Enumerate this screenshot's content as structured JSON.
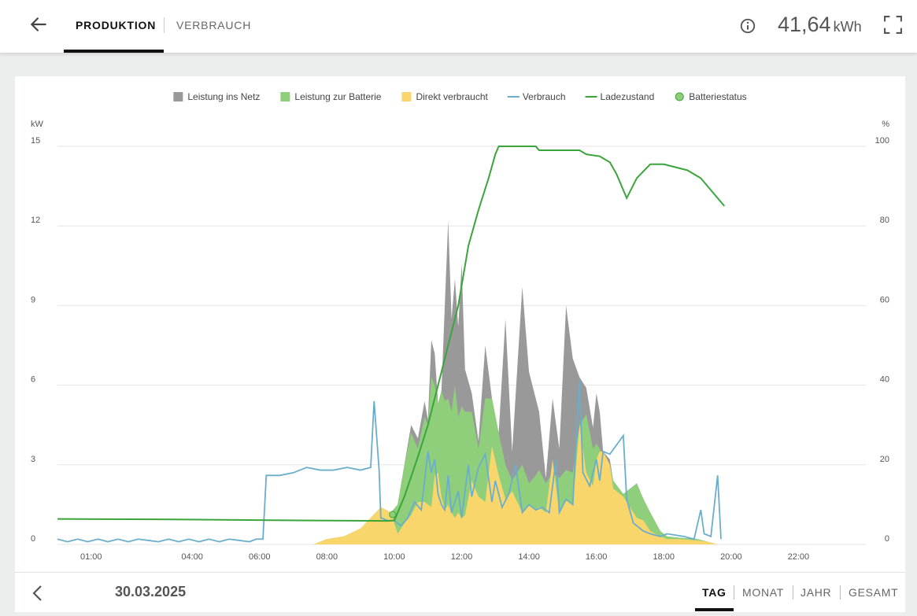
{
  "header": {
    "tabs": [
      {
        "label": "PRODUKTION",
        "active": true
      },
      {
        "label": "VERBRAUCH",
        "active": false
      }
    ],
    "total_value": "41,64",
    "total_unit": "kWh",
    "icons": {
      "back": "arrow-left-icon",
      "info": "info-icon",
      "fullscreen": "fullscreen-icon"
    }
  },
  "footer": {
    "date": "30.03.2025",
    "periods": [
      {
        "label": "TAG",
        "active": true
      },
      {
        "label": "MONAT",
        "active": false
      },
      {
        "label": "JAHR",
        "active": false
      },
      {
        "label": "GESAMT",
        "active": false
      }
    ],
    "icons": {
      "prev": "chevron-left-icon"
    }
  },
  "chart_data": {
    "type": "area",
    "left_axis_unit": "kW",
    "right_axis_unit": "%",
    "left_ticks": [
      0,
      3,
      6,
      9,
      12,
      15
    ],
    "right_ticks": [
      0,
      20,
      40,
      60,
      80,
      100
    ],
    "x_ticks": [
      "01:00",
      "04:00",
      "06:00",
      "08:00",
      "10:00",
      "12:00",
      "14:00",
      "16:00",
      "18:00",
      "20:00",
      "22:00"
    ],
    "x_range_hours": [
      0.0,
      24.0
    ],
    "ylim_left": [
      0,
      15
    ],
    "ylim_right": [
      0,
      100
    ],
    "grid": true,
    "legend_position": "top-center",
    "colors": {
      "netz": "#999999",
      "batterie": "#8fcf7c",
      "direkt": "#f9d66b",
      "verbrauch": "#6aaecb",
      "ladezustand": "#3aa53a",
      "batteriestatus": "#8fcf7c"
    },
    "legend": [
      {
        "name": "Leistung ins Netz",
        "type": "area",
        "key": "netz"
      },
      {
        "name": "Leistung zur Batterie",
        "type": "area",
        "key": "batterie"
      },
      {
        "name": "Direkt verbraucht",
        "type": "area",
        "key": "direkt"
      },
      {
        "name": "Verbrauch",
        "type": "line",
        "key": "verbrauch"
      },
      {
        "name": "Ladezustand",
        "type": "line",
        "key": "ladezustand"
      },
      {
        "name": "Batteriestatus",
        "type": "marker",
        "key": "batteriestatus"
      }
    ],
    "production_kw": [
      [
        7.6,
        0
      ],
      [
        8,
        0.2
      ],
      [
        8.5,
        0.3
      ],
      [
        9,
        0.6
      ],
      [
        9.3,
        1.0
      ],
      [
        9.6,
        1.4
      ],
      [
        9.9,
        1.2
      ],
      [
        10.1,
        1.5
      ],
      [
        10.3,
        3.0
      ],
      [
        10.5,
        4.5
      ],
      [
        10.7,
        4.0
      ],
      [
        10.9,
        5.4
      ],
      [
        11.0,
        4.7
      ],
      [
        11.1,
        7.7
      ],
      [
        11.2,
        7.2
      ],
      [
        11.3,
        5.3
      ],
      [
        11.4,
        5.8
      ],
      [
        11.5,
        9.0
      ],
      [
        11.6,
        12.2
      ],
      [
        11.7,
        8.5
      ],
      [
        11.8,
        10.0
      ],
      [
        11.9,
        8.2
      ],
      [
        12.0,
        10.6
      ],
      [
        12.1,
        6.6
      ],
      [
        12.3,
        5.7
      ],
      [
        12.5,
        3.9
      ],
      [
        12.7,
        7.5
      ],
      [
        12.9,
        5.5
      ],
      [
        13.1,
        4.2
      ],
      [
        13.3,
        8.5
      ],
      [
        13.5,
        3.5
      ],
      [
        13.8,
        9.7
      ],
      [
        14.0,
        6.5
      ],
      [
        14.2,
        5.5
      ],
      [
        14.3,
        5.0
      ],
      [
        14.5,
        2.5
      ],
      [
        14.7,
        5.5
      ],
      [
        14.9,
        3.6
      ],
      [
        15.1,
        9.0
      ],
      [
        15.3,
        7.0
      ],
      [
        15.5,
        6.3
      ],
      [
        15.7,
        5.9
      ],
      [
        15.9,
        4.4
      ],
      [
        16.0,
        5.7
      ],
      [
        16.1,
        5.0
      ],
      [
        16.2,
        3.5
      ],
      [
        16.4,
        3.2
      ],
      [
        16.5,
        2.4
      ],
      [
        16.8,
        1.9
      ],
      [
        17.0,
        2.1
      ],
      [
        17.2,
        2.3
      ],
      [
        17.4,
        1.7
      ],
      [
        17.6,
        1.2
      ],
      [
        17.9,
        0.5
      ],
      [
        18.1,
        0.3
      ],
      [
        18.5,
        0.25
      ],
      [
        19.0,
        0.2
      ],
      [
        19.3,
        0.1
      ],
      [
        19.6,
        0
      ]
    ],
    "battery_plus_direct_kw": [
      [
        7.6,
        0
      ],
      [
        8,
        0.2
      ],
      [
        8.5,
        0.3
      ],
      [
        9,
        0.6
      ],
      [
        9.3,
        1.0
      ],
      [
        9.6,
        1.4
      ],
      [
        9.9,
        1.2
      ],
      [
        10.1,
        1.5
      ],
      [
        10.3,
        3.0
      ],
      [
        10.5,
        4.2
      ],
      [
        10.7,
        3.6
      ],
      [
        10.9,
        4.8
      ],
      [
        11.0,
        4.5
      ],
      [
        11.1,
        6.3
      ],
      [
        11.2,
        6.0
      ],
      [
        11.3,
        5.3
      ],
      [
        11.4,
        5.8
      ],
      [
        11.5,
        5.4
      ],
      [
        11.6,
        5.5
      ],
      [
        11.7,
        5.0
      ],
      [
        11.8,
        6.0
      ],
      [
        11.9,
        4.8
      ],
      [
        12.0,
        5.2
      ],
      [
        12.1,
        5.0
      ],
      [
        12.3,
        5.0
      ],
      [
        12.5,
        3.6
      ],
      [
        12.7,
        5.5
      ],
      [
        12.9,
        5.5
      ],
      [
        13.1,
        4.2
      ],
      [
        13.3,
        3.0
      ],
      [
        13.5,
        2.4
      ],
      [
        13.8,
        3.0
      ],
      [
        14.0,
        2.3
      ],
      [
        14.2,
        2.6
      ],
      [
        14.3,
        2.8
      ],
      [
        14.5,
        2.3
      ],
      [
        14.7,
        2.7
      ],
      [
        14.9,
        2.5
      ],
      [
        15.1,
        2.8
      ],
      [
        15.3,
        2.7
      ],
      [
        15.5,
        4.5
      ],
      [
        15.7,
        4.9
      ],
      [
        15.9,
        3.6
      ],
      [
        16.0,
        3.8
      ],
      [
        16.1,
        3.6
      ],
      [
        16.2,
        3.2
      ],
      [
        16.4,
        3.0
      ],
      [
        16.5,
        2.4
      ],
      [
        16.8,
        1.9
      ],
      [
        17.0,
        2.1
      ],
      [
        17.2,
        2.3
      ],
      [
        17.4,
        1.7
      ],
      [
        17.6,
        1.2
      ],
      [
        17.9,
        0.5
      ],
      [
        18.1,
        0.3
      ],
      [
        18.5,
        0.25
      ],
      [
        19.0,
        0.2
      ],
      [
        19.3,
        0.1
      ],
      [
        19.6,
        0
      ]
    ],
    "direct_kw": [
      [
        7.6,
        0
      ],
      [
        8,
        0.2
      ],
      [
        8.5,
        0.3
      ],
      [
        9,
        0.6
      ],
      [
        9.3,
        1.0
      ],
      [
        9.6,
        1.4
      ],
      [
        9.9,
        1.2
      ],
      [
        10.1,
        0.4
      ],
      [
        10.3,
        0.8
      ],
      [
        10.5,
        1.1
      ],
      [
        10.7,
        1.6
      ],
      [
        10.9,
        1.6
      ],
      [
        11.0,
        1.5
      ],
      [
        11.1,
        1.4
      ],
      [
        11.2,
        2.6
      ],
      [
        11.3,
        2.7
      ],
      [
        11.4,
        1.8
      ],
      [
        11.5,
        1.3
      ],
      [
        11.6,
        1.5
      ],
      [
        11.7,
        1.2
      ],
      [
        11.8,
        1.0
      ],
      [
        11.9,
        1.2
      ],
      [
        12.0,
        1.0
      ],
      [
        12.1,
        1.1
      ],
      [
        12.3,
        2.4
      ],
      [
        12.5,
        1.8
      ],
      [
        12.7,
        1.6
      ],
      [
        12.9,
        3.7
      ],
      [
        13.1,
        2.6
      ],
      [
        13.3,
        1.7
      ],
      [
        13.5,
        2.0
      ],
      [
        13.8,
        1.2
      ],
      [
        14.0,
        1.5
      ],
      [
        14.2,
        1.3
      ],
      [
        14.3,
        1.4
      ],
      [
        14.5,
        1.2
      ],
      [
        14.7,
        3.2
      ],
      [
        14.9,
        1.2
      ],
      [
        15.1,
        1.7
      ],
      [
        15.3,
        1.5
      ],
      [
        15.5,
        4.5
      ],
      [
        15.7,
        2.7
      ],
      [
        15.9,
        2.2
      ],
      [
        16.0,
        3.2
      ],
      [
        16.1,
        3.5
      ],
      [
        16.2,
        3.5
      ],
      [
        16.4,
        3.0
      ],
      [
        16.5,
        2.1
      ],
      [
        16.8,
        1.8
      ],
      [
        17.0,
        1.4
      ],
      [
        17.2,
        1.0
      ],
      [
        17.4,
        0.9
      ],
      [
        17.6,
        0.5
      ],
      [
        17.9,
        0.3
      ],
      [
        18.1,
        0.2
      ],
      [
        18.5,
        0.2
      ],
      [
        19.0,
        0.15
      ],
      [
        19.3,
        0.1
      ],
      [
        19.6,
        0
      ]
    ],
    "verbrauch_kw": [
      [
        0.0,
        0.2
      ],
      [
        0.3,
        0.1
      ],
      [
        0.6,
        0.2
      ],
      [
        0.9,
        0.1
      ],
      [
        1.2,
        0.2
      ],
      [
        1.5,
        0.1
      ],
      [
        1.8,
        0.2
      ],
      [
        2.1,
        0.1
      ],
      [
        2.4,
        0.2
      ],
      [
        2.7,
        0.15
      ],
      [
        3.0,
        0.1
      ],
      [
        3.3,
        0.2
      ],
      [
        3.6,
        0.1
      ],
      [
        3.9,
        0.2
      ],
      [
        4.2,
        0.1
      ],
      [
        4.5,
        0.2
      ],
      [
        4.8,
        0.1
      ],
      [
        5.1,
        0.2
      ],
      [
        5.4,
        0.15
      ],
      [
        5.7,
        0.1
      ],
      [
        5.9,
        0.2
      ],
      [
        6.1,
        0.2
      ],
      [
        6.2,
        2.6
      ],
      [
        6.6,
        2.6
      ],
      [
        7.0,
        2.7
      ],
      [
        7.4,
        2.9
      ],
      [
        7.8,
        2.8
      ],
      [
        8.2,
        2.8
      ],
      [
        8.6,
        2.9
      ],
      [
        9.0,
        2.8
      ],
      [
        9.3,
        2.9
      ],
      [
        9.4,
        5.4
      ],
      [
        9.55,
        2.8
      ],
      [
        9.6,
        1.0
      ],
      [
        9.8,
        0.9
      ],
      [
        10.0,
        0.9
      ],
      [
        10.2,
        0.7
      ],
      [
        10.4,
        1.0
      ],
      [
        10.6,
        1.6
      ],
      [
        10.8,
        1.3
      ],
      [
        11.0,
        3.5
      ],
      [
        11.1,
        2.7
      ],
      [
        11.2,
        3.2
      ],
      [
        11.3,
        1.9
      ],
      [
        11.4,
        1.5
      ],
      [
        11.5,
        1.3
      ],
      [
        11.6,
        2.6
      ],
      [
        11.7,
        1.2
      ],
      [
        11.9,
        2.0
      ],
      [
        12.0,
        1.0
      ],
      [
        12.2,
        3.0
      ],
      [
        12.3,
        1.8
      ],
      [
        12.5,
        2.9
      ],
      [
        12.7,
        3.4
      ],
      [
        12.9,
        1.6
      ],
      [
        13.0,
        2.4
      ],
      [
        13.2,
        1.4
      ],
      [
        13.4,
        1.9
      ],
      [
        13.6,
        3.0
      ],
      [
        13.8,
        1.2
      ],
      [
        14.0,
        1.5
      ],
      [
        14.2,
        1.3
      ],
      [
        14.4,
        1.4
      ],
      [
        14.6,
        1.2
      ],
      [
        14.8,
        3.2
      ],
      [
        14.9,
        1.2
      ],
      [
        15.1,
        1.7
      ],
      [
        15.3,
        1.5
      ],
      [
        15.5,
        6.2
      ],
      [
        15.6,
        2.7
      ],
      [
        15.8,
        2.2
      ],
      [
        16.0,
        3.2
      ],
      [
        16.1,
        2.4
      ],
      [
        16.2,
        3.5
      ],
      [
        16.4,
        3.4
      ],
      [
        16.8,
        4.1
      ],
      [
        16.9,
        1.7
      ],
      [
        17.1,
        0.8
      ],
      [
        17.4,
        0.5
      ],
      [
        17.6,
        0.4
      ],
      [
        17.9,
        0.3
      ],
      [
        18.1,
        0.4
      ],
      [
        18.6,
        0.3
      ],
      [
        18.9,
        0.2
      ],
      [
        19.1,
        1.3
      ],
      [
        19.2,
        0.4
      ],
      [
        19.4,
        0.3
      ],
      [
        19.6,
        2.6
      ],
      [
        19.7,
        0.2
      ]
    ],
    "ladezustand_pct": [
      [
        0.0,
        6.4
      ],
      [
        3.0,
        6.3
      ],
      [
        6.0,
        6.1
      ],
      [
        9.8,
        5.9
      ],
      [
        10.0,
        6.0
      ],
      [
        10.3,
        12.0
      ],
      [
        10.7,
        22.0
      ],
      [
        11.0,
        30.0
      ],
      [
        11.3,
        40.0
      ],
      [
        11.6,
        50.0
      ],
      [
        11.9,
        60.0
      ],
      [
        12.2,
        75.0
      ],
      [
        12.5,
        84.0
      ],
      [
        12.8,
        92.0
      ],
      [
        13.0,
        98.0
      ],
      [
        13.1,
        100.0
      ],
      [
        14.2,
        100.0
      ],
      [
        14.3,
        99.0
      ],
      [
        15.5,
        99.0
      ],
      [
        15.7,
        98.0
      ],
      [
        16.1,
        97.5
      ],
      [
        16.4,
        96.0
      ],
      [
        16.6,
        93.0
      ],
      [
        16.9,
        87.0
      ],
      [
        17.2,
        92.0
      ],
      [
        17.6,
        95.5
      ],
      [
        18.0,
        95.5
      ],
      [
        18.7,
        94.0
      ],
      [
        19.1,
        92.0
      ],
      [
        19.5,
        88.0
      ],
      [
        19.8,
        85.0
      ]
    ],
    "batteriestatus_marker": [
      [
        9.95,
        7.5
      ]
    ]
  }
}
